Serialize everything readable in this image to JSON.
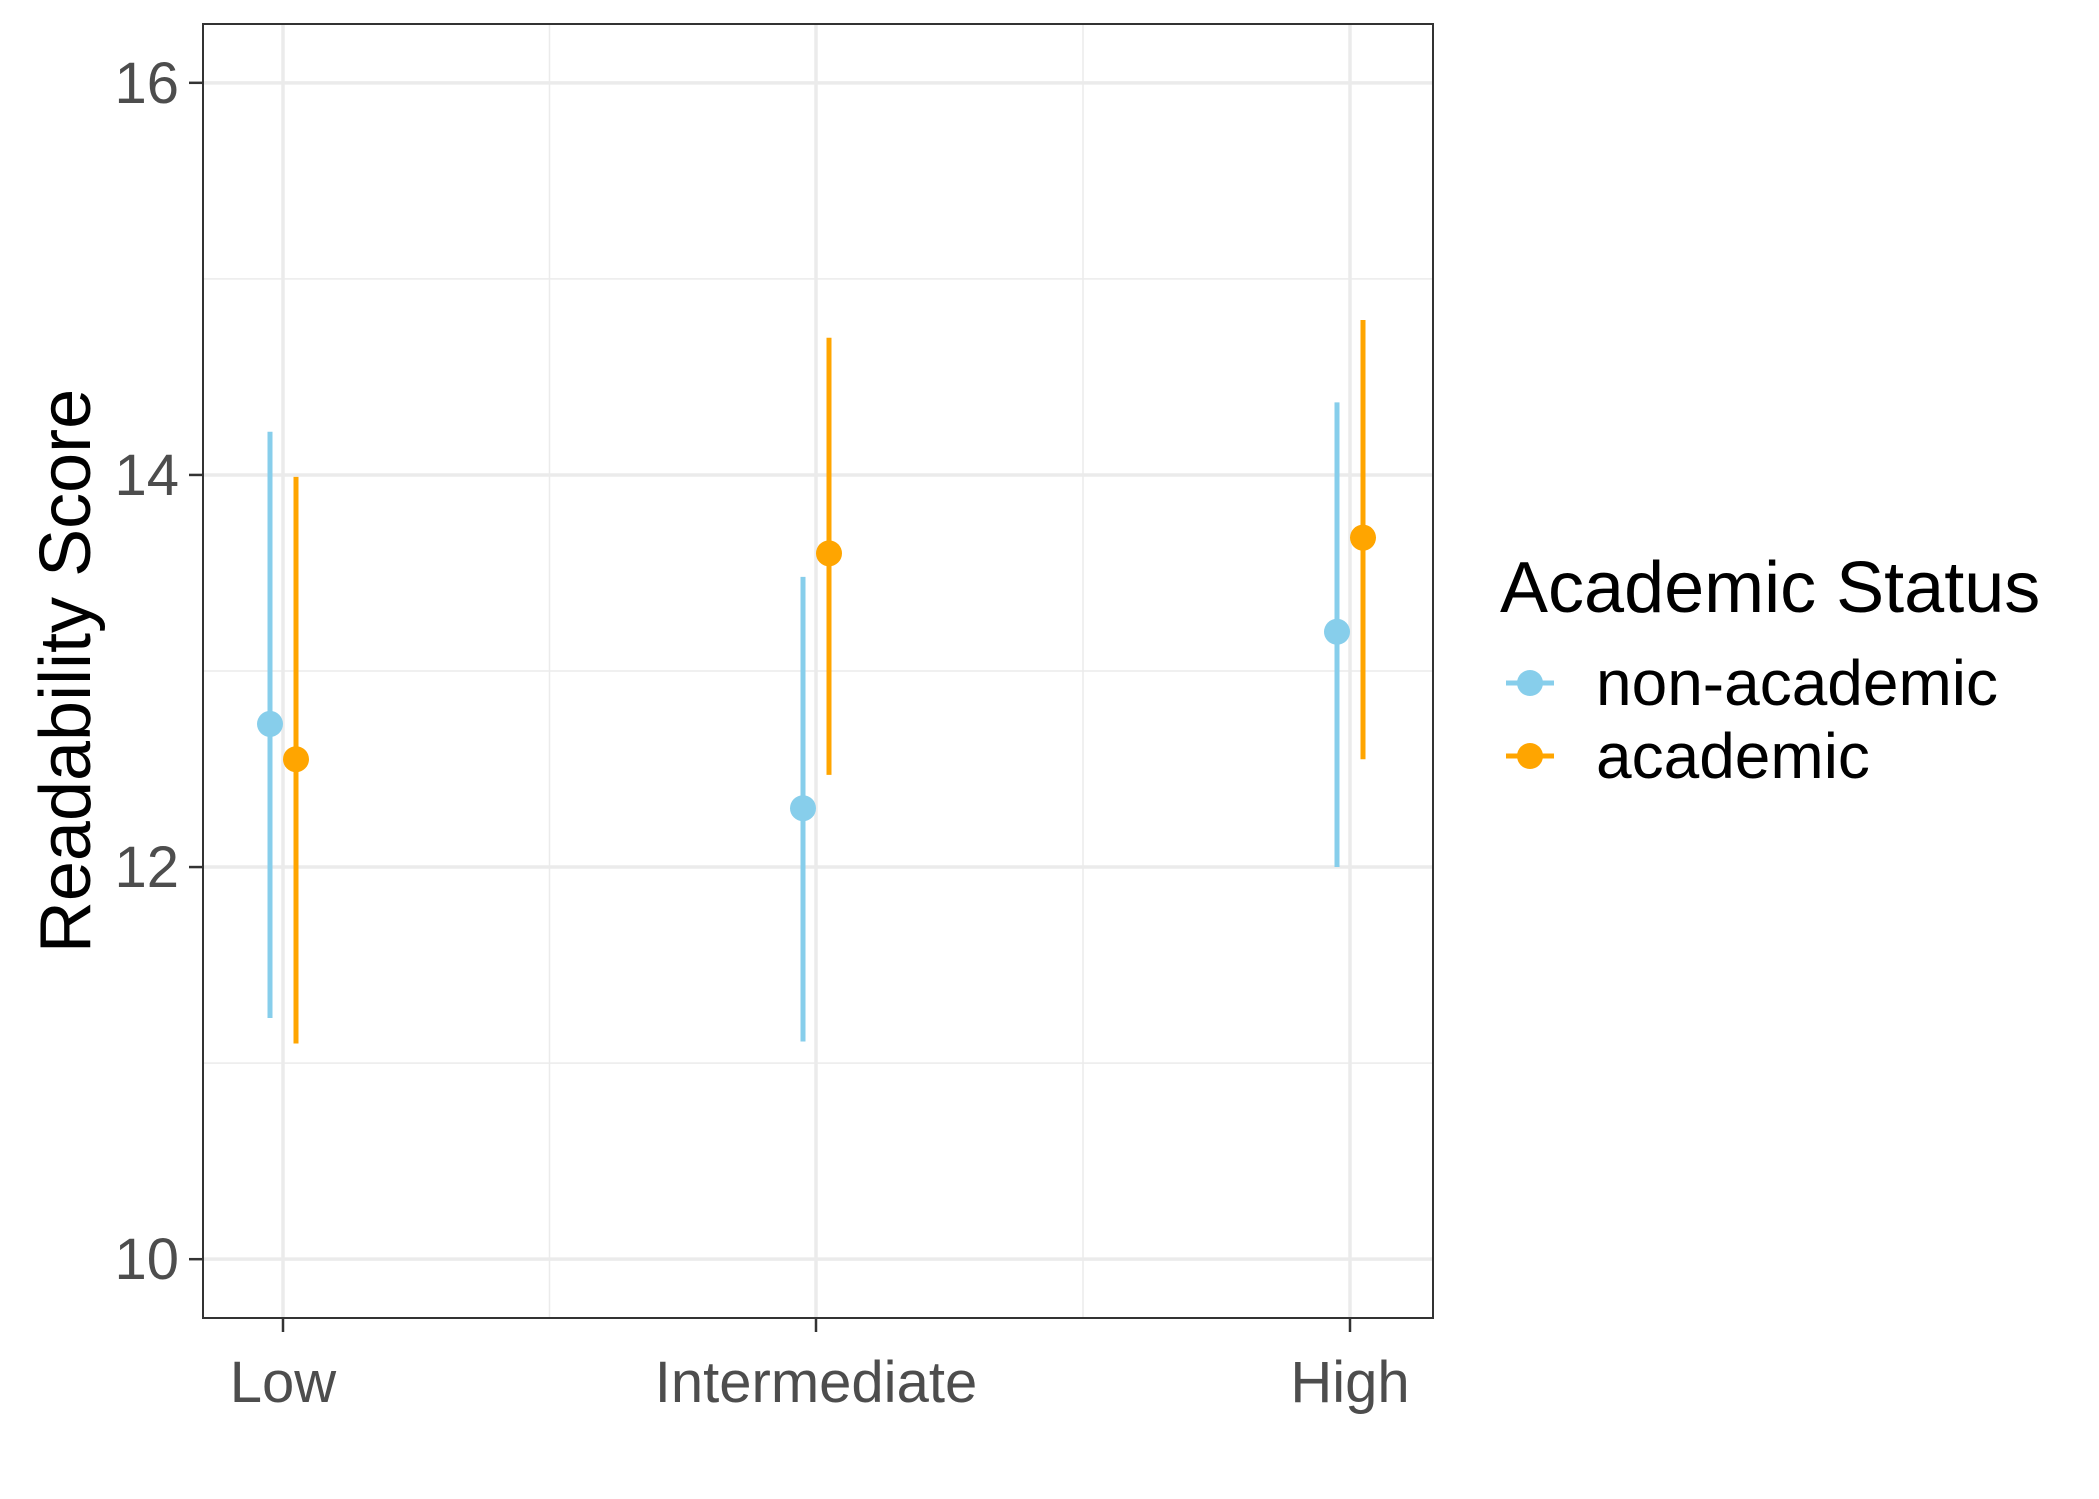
{
  "chart_data": {
    "type": "errorbar",
    "title": "",
    "xlabel": "",
    "ylabel": "Readability Score",
    "categories": [
      "Low",
      "Intermediate",
      "High"
    ],
    "ylim": [
      9.7,
      16.3
    ],
    "y_ticks": [
      "10",
      "12",
      "14",
      "16"
    ],
    "grid": true,
    "legend": {
      "title": "Academic Status",
      "placement": "right"
    },
    "series": [
      {
        "name": "non-academic",
        "color": "#87CEEB",
        "values": [
          12.73,
          12.3,
          13.2
        ],
        "lower": [
          11.23,
          11.11,
          12.0
        ],
        "upper": [
          14.22,
          13.48,
          14.37
        ]
      },
      {
        "name": "academic",
        "color": "#FFA500",
        "values": [
          12.55,
          13.6,
          13.68
        ],
        "lower": [
          11.1,
          12.47,
          12.55
        ],
        "upper": [
          13.99,
          14.7,
          14.79
        ]
      }
    ]
  }
}
